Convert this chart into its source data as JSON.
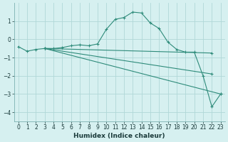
{
  "xlabel": "Humidex (Indice chaleur)",
  "bg_color": "#d6f0f0",
  "grid_color": "#b0d8d8",
  "line_color": "#2e8b7a",
  "xlim": [
    -0.5,
    23.5
  ],
  "ylim": [
    -4.5,
    2.0
  ],
  "yticks": [
    -4,
    -3,
    -2,
    -1,
    0,
    1
  ],
  "xticks": [
    0,
    1,
    2,
    3,
    4,
    5,
    6,
    7,
    8,
    9,
    10,
    11,
    12,
    13,
    14,
    15,
    16,
    17,
    18,
    19,
    20,
    21,
    22,
    23
  ],
  "series": [
    [
      0,
      -0.4
    ],
    [
      1,
      -0.65
    ],
    [
      2,
      -0.55
    ],
    [
      3,
      -0.5
    ],
    [
      4,
      -0.5
    ],
    [
      5,
      -0.45
    ],
    [
      6,
      -0.35
    ],
    [
      7,
      -0.3
    ],
    [
      8,
      -0.35
    ],
    [
      9,
      -0.25
    ],
    [
      10,
      0.55
    ],
    [
      11,
      1.1
    ],
    [
      12,
      1.2
    ],
    [
      13,
      1.5
    ],
    [
      14,
      1.45
    ],
    [
      15,
      0.9
    ],
    [
      16,
      0.6
    ],
    [
      17,
      -0.15
    ],
    [
      18,
      -0.55
    ],
    [
      19,
      -0.7
    ],
    [
      20,
      -0.7
    ],
    [
      21,
      -2.0
    ],
    [
      22,
      -3.7
    ],
    [
      23,
      -3.0
    ]
  ],
  "extra_lines": [
    [
      [
        3,
        -0.5
      ],
      [
        22,
        -0.75
      ]
    ],
    [
      [
        3,
        -0.5
      ],
      [
        22,
        -1.9
      ]
    ],
    [
      [
        3,
        -0.5
      ],
      [
        23,
        -3.0
      ]
    ]
  ],
  "figsize": [
    3.2,
    2.0
  ],
  "dpi": 100,
  "tick_fontsize": 5.5,
  "xlabel_fontsize": 6.5
}
